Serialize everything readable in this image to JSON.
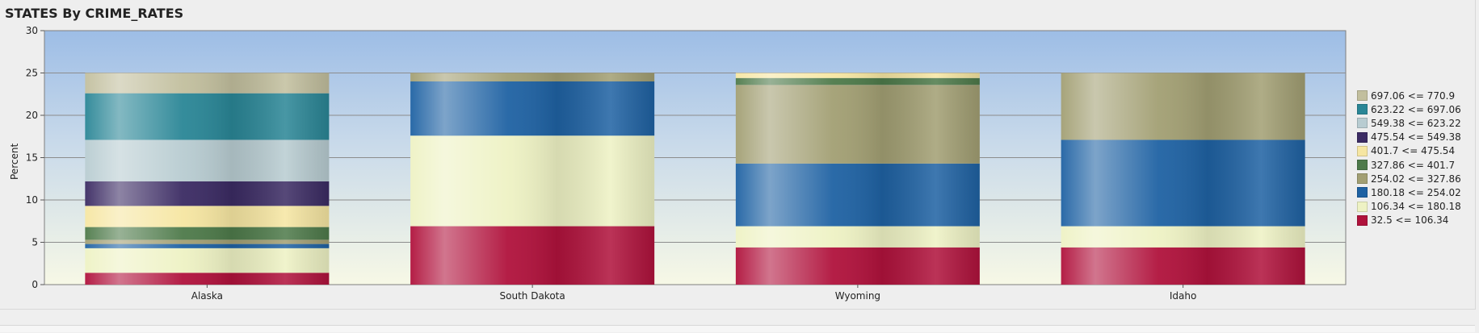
{
  "chart_data": {
    "type": "bar",
    "stacked": true,
    "title": "STATES By CRIME_RATES",
    "xlabel": "",
    "ylabel": "Percent",
    "ylim": [
      0,
      30
    ],
    "yticks": [
      0,
      5,
      10,
      15,
      20,
      25,
      30
    ],
    "grid": true,
    "legend_position": "right",
    "categories": [
      "Alaska",
      "South Dakota",
      "Wyoming",
      "Idaho"
    ],
    "series": [
      {
        "name": "32.5 <= 106.34",
        "color": "#b0123c",
        "values": [
          1.4,
          6.9,
          4.4,
          4.4
        ]
      },
      {
        "name": "106.34 <= 180.18",
        "color": "#eef2c4",
        "values": [
          2.9,
          0,
          2.5,
          2.5
        ]
      },
      {
        "name": "180.18 <= 254.02",
        "color": "#1f62a3",
        "values": [
          0.5,
          0,
          0,
          0
        ]
      },
      {
        "name": "254.02 <= 327.86",
        "color": "#a29f73",
        "values": [
          0.5,
          0,
          0,
          0
        ]
      },
      {
        "name": "327.86 <= 401.7",
        "color": "#4e7a4a",
        "values": [
          1.5,
          0,
          0,
          0
        ]
      },
      {
        "name": "401.7 <= 475.54",
        "color": "#f6e6a2",
        "values": [
          2.5,
          0,
          0,
          0
        ]
      },
      {
        "name": "475.54 <= 549.38",
        "color": "#3b2b63",
        "values": [
          2.9,
          0,
          0,
          0
        ]
      },
      {
        "name": "549.38 <= 623.22",
        "color": "#b8ccd1",
        "values": [
          4.9,
          0,
          0,
          0
        ]
      },
      {
        "name": "623.22 <= 697.06",
        "color": "#2a8696",
        "values": [
          5.5,
          0,
          0,
          0
        ]
      },
      {
        "name": "697.06 <= 770.9",
        "color": "#c2bf9e",
        "values": [
          2.4,
          0,
          0,
          0
        ]
      },
      {
        "name": "106.34 <= 180.18",
        "color": "#eef2c4",
        "values": [
          0,
          10.7,
          0,
          0
        ]
      },
      {
        "name": "180.18 <= 254.02",
        "color": "#1f62a3",
        "values": [
          0,
          6.4,
          7.4,
          10.2
        ]
      },
      {
        "name": "254.02 <= 327.86",
        "color": "#a29f73",
        "values": [
          0,
          1.0,
          9.3,
          7.9
        ]
      },
      {
        "name": "327.86 <= 401.7",
        "color": "#4e7a4a",
        "values": [
          0,
          0,
          0.8,
          0
        ]
      },
      {
        "name": "401.7 <= 475.54",
        "color": "#f6e6a2",
        "values": [
          0,
          0,
          0.6,
          0
        ]
      }
    ]
  },
  "legend": {
    "items": [
      {
        "label": "697.06 <= 770.9",
        "color": "#c2bf9e"
      },
      {
        "label": "623.22 <= 697.06",
        "color": "#2a8696"
      },
      {
        "label": "549.38 <= 623.22",
        "color": "#b8ccd1"
      },
      {
        "label": "475.54 <= 549.38",
        "color": "#3b2b63"
      },
      {
        "label": "401.7 <= 475.54",
        "color": "#f6e6a2"
      },
      {
        "label": "327.86 <= 401.7",
        "color": "#4e7a4a"
      },
      {
        "label": "254.02 <= 327.86",
        "color": "#a29f73"
      },
      {
        "label": "180.18 <= 254.02",
        "color": "#1f62a3"
      },
      {
        "label": "106.34 <= 180.18",
        "color": "#eef2c4"
      },
      {
        "label": "32.5 <= 106.34",
        "color": "#b0123c"
      }
    ]
  }
}
